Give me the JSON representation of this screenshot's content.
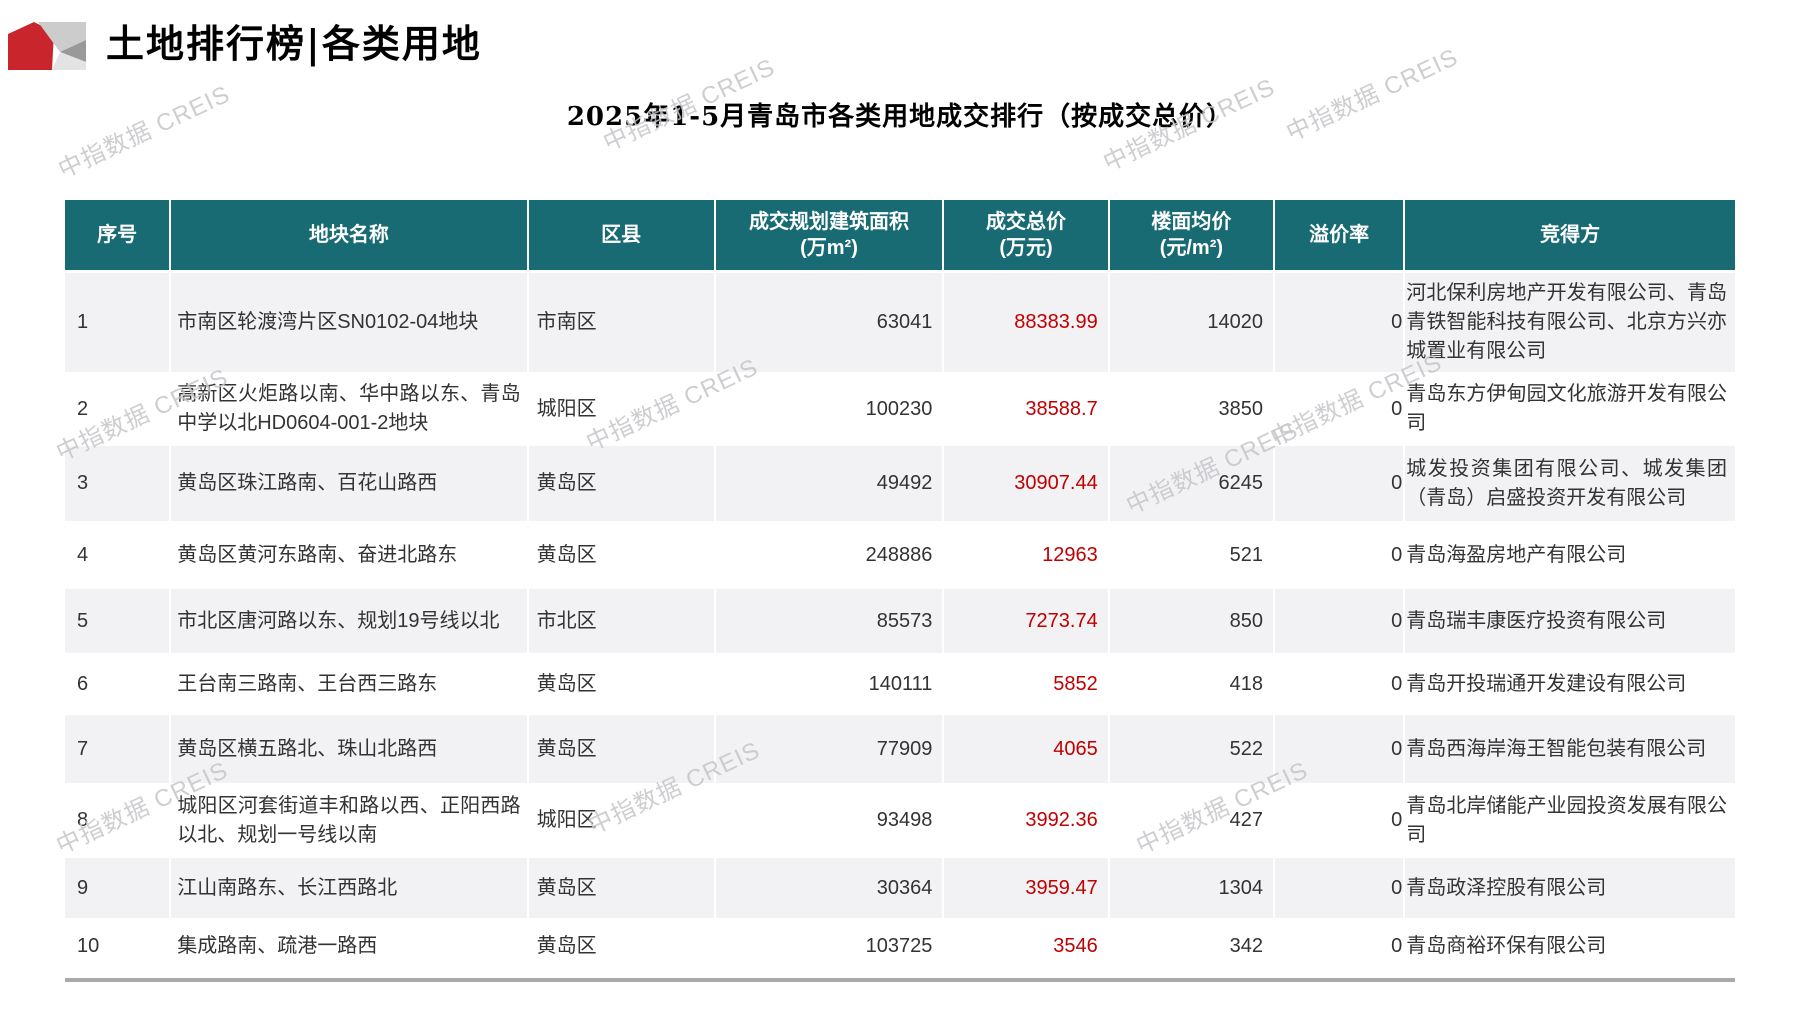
{
  "page": {
    "title": "土地排行榜|各类用地",
    "subtitle": "2025年1-5月青岛市各类用地成交排行（按成交总价）",
    "watermark": "中指数据 CREIS"
  },
  "colors": {
    "header_bg": "#186a73",
    "price_red": "#c00000",
    "stripe_gray": "#f2f2f4",
    "logo_red": "#c9252c",
    "watermark_gray": "#c6c6ca"
  },
  "table": {
    "headers": [
      {
        "label": "序号",
        "unit": ""
      },
      {
        "label": "地块名称",
        "unit": ""
      },
      {
        "label": "区县",
        "unit": ""
      },
      {
        "label": "成交规划建筑面积",
        "unit": "(万m²)"
      },
      {
        "label": "成交总价",
        "unit": "(万元)"
      },
      {
        "label": "楼面均价",
        "unit": "(元/m²)"
      },
      {
        "label": "溢价率",
        "unit": ""
      },
      {
        "label": "竞得方",
        "unit": ""
      }
    ],
    "rows": [
      {
        "rank": "1",
        "name": "市南区轮渡湾片区SN0102-04地块",
        "district": "市南区",
        "area": "63041",
        "total_price": "88383.99",
        "floor_price": "14020",
        "premium": "0",
        "winner": "河北保利房地产开发有限公司、青岛青铁智能科技有限公司、北京方兴亦城置业有限公司"
      },
      {
        "rank": "2",
        "name": "高新区火炬路以南、华中路以东、青岛中学以北HD0604-001-2地块",
        "district": "城阳区",
        "area": "100230",
        "total_price": "38588.7",
        "floor_price": "3850",
        "premium": "0",
        "winner": "青岛东方伊甸园文化旅游开发有限公司"
      },
      {
        "rank": "3",
        "name": "黄岛区珠江路南、百花山路西",
        "district": "黄岛区",
        "area": "49492",
        "total_price": "30907.44",
        "floor_price": "6245",
        "premium": "0",
        "winner": "城发投资集团有限公司、城发集团（青岛）启盛投资开发有限公司"
      },
      {
        "rank": "4",
        "name": "黄岛区黄河东路南、奋进北路东",
        "district": "黄岛区",
        "area": "248886",
        "total_price": "12963",
        "floor_price": "521",
        "premium": "0",
        "winner": "青岛海盈房地产有限公司"
      },
      {
        "rank": "5",
        "name": "市北区唐河路以东、规划19号线以北",
        "district": "市北区",
        "area": "85573",
        "total_price": "7273.74",
        "floor_price": "850",
        "premium": "0",
        "winner": "青岛瑞丰康医疗投资有限公司"
      },
      {
        "rank": "6",
        "name": "王台南三路南、王台西三路东",
        "district": "黄岛区",
        "area": "140111",
        "total_price": "5852",
        "floor_price": "418",
        "premium": "0",
        "winner": "青岛开投瑞通开发建设有限公司"
      },
      {
        "rank": "7",
        "name": "黄岛区横五路北、珠山北路西",
        "district": "黄岛区",
        "area": "77909",
        "total_price": "4065",
        "floor_price": "522",
        "premium": "0",
        "winner": "青岛西海岸海王智能包装有限公司"
      },
      {
        "rank": "8",
        "name": "城阳区河套街道丰和路以西、正阳西路以北、规划一号线以南",
        "district": "城阳区",
        "area": "93498",
        "total_price": "3992.36",
        "floor_price": "427",
        "premium": "0",
        "winner": "青岛北岸储能产业园投资发展有限公司"
      },
      {
        "rank": "9",
        "name": "江山南路东、长江西路北",
        "district": "黄岛区",
        "area": "30364",
        "total_price": "3959.47",
        "floor_price": "1304",
        "premium": "0",
        "winner": "青岛政泽控股有限公司"
      },
      {
        "rank": "10",
        "name": "集成路南、疏港一路西",
        "district": "黄岛区",
        "area": "103725",
        "total_price": "3546",
        "floor_price": "342",
        "premium": "0",
        "winner": "青岛商裕环保有限公司"
      }
    ]
  }
}
